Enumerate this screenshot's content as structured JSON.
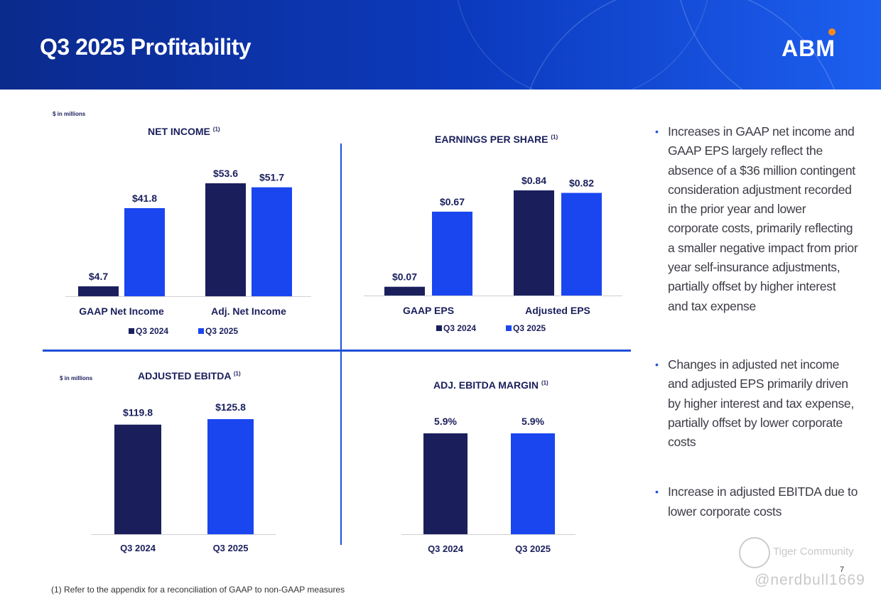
{
  "header": {
    "title": "Q3 2025 Profitability",
    "logo": "ABM"
  },
  "colors": {
    "q2024": "#1a1f5c",
    "q2025": "#1a46f0",
    "header_start": "#0b2a8c",
    "header_end": "#1d5ff0",
    "divider": "#1f4fd8"
  },
  "units": {
    "top": "$ in millions",
    "bottom": "$ in millions"
  },
  "chart_data": [
    {
      "type": "bar",
      "title": "NET INCOME",
      "footnote_ref": "(1)",
      "categories": [
        "GAAP Net Income",
        "Adj. Net Income"
      ],
      "series": [
        {
          "name": "Q3 2024",
          "values": [
            4.7,
            53.6
          ],
          "labels": [
            "$4.7",
            "$53.6"
          ]
        },
        {
          "name": "Q3 2025",
          "values": [
            41.8,
            51.7
          ],
          "labels": [
            "$41.8",
            "$51.7"
          ]
        }
      ],
      "legend": [
        "Q3 2024",
        "Q3 2025"
      ],
      "ylim": [
        0,
        60
      ]
    },
    {
      "type": "bar",
      "title": "EARNINGS PER SHARE",
      "footnote_ref": "(1)",
      "categories": [
        "GAAP EPS",
        "Adjusted EPS"
      ],
      "series": [
        {
          "name": "Q3 2024",
          "values": [
            0.07,
            0.84
          ],
          "labels": [
            "$0.07",
            "$0.84"
          ]
        },
        {
          "name": "Q3 2025",
          "values": [
            0.67,
            0.82
          ],
          "labels": [
            "$0.67",
            "$0.82"
          ]
        }
      ],
      "legend": [
        "Q3 2024",
        "Q3 2025"
      ],
      "ylim": [
        0,
        0.95
      ]
    },
    {
      "type": "bar",
      "title": "ADJUSTED EBITDA",
      "footnote_ref": "(1)",
      "categories": [
        "Q3 2024",
        "Q3 2025"
      ],
      "values": [
        119.8,
        125.8
      ],
      "labels": [
        "$119.8",
        "$125.8"
      ],
      "ylim": [
        0,
        175
      ]
    },
    {
      "type": "bar",
      "title": "ADJ. EBITDA MARGIN",
      "footnote_ref": "(1)",
      "categories": [
        "Q3 2024",
        "Q3 2025"
      ],
      "values": [
        5.9,
        5.9
      ],
      "labels": [
        "5.9%",
        "5.9%"
      ],
      "ylim": [
        0,
        7.75
      ]
    }
  ],
  "bullets": [
    "Increases in GAAP net income and GAAP EPS largely reflect the absence of a $36 million contingent consideration adjustment recorded in the prior year and lower corporate costs, primarily reflecting a smaller negative impact from prior year self-insurance adjustments, partially offset by higher interest and tax expense",
    "Changes in adjusted net  income and adjusted EPS primarily driven by higher interest and tax expense, partially offset by lower corporate costs",
    "Increase in adjusted EBITDA due to lower corporate costs"
  ],
  "footnote": "(1)    Refer to the appendix for a reconciliation of GAAP to non-GAAP measures",
  "page_number": "7",
  "watermark": {
    "brand": "Tiger Community",
    "handle": "@nerdbull1669"
  }
}
